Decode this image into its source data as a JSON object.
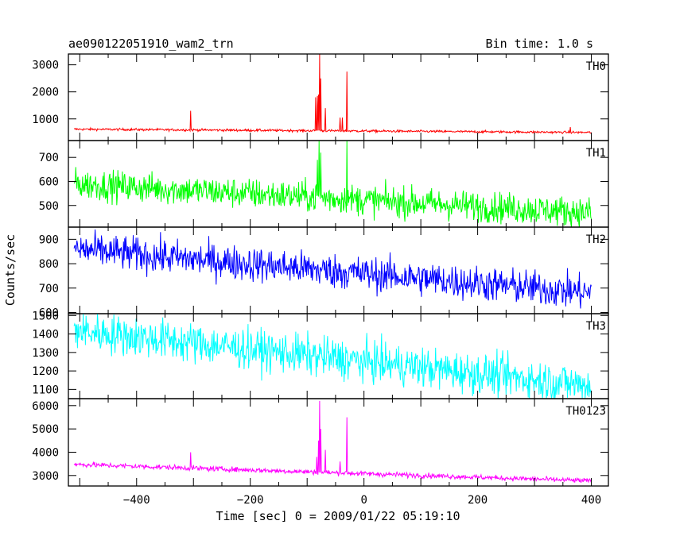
{
  "header": {
    "title": "ae090122051910_wam2_trn",
    "bin_time": "Bin time: 1.0 s"
  },
  "axes": {
    "ylabel": "Counts/sec",
    "xlabel": "Time [sec] 0 = 2009/01/22 05:19:10"
  },
  "chart_data": {
    "type": "line",
    "xlabel": "Time [sec] 0 = 2009/01/22 05:19:10",
    "ylabel": "Counts/sec",
    "x_range": [
      -510,
      400
    ],
    "xlim": [
      -520,
      430
    ],
    "x_ticks": [
      -400,
      -200,
      0,
      200,
      400
    ],
    "panels": [
      {
        "name": "TH0",
        "color": "#ff0000",
        "ylim": [
          200,
          3400
        ],
        "y_ticks": [
          1000,
          2000,
          3000
        ],
        "baseline": [
          620,
          500
        ],
        "noise": 22,
        "spikes": [
          {
            "x": -305,
            "y": 1300
          },
          {
            "x": -85,
            "y": 1800
          },
          {
            "x": -82,
            "y": 1850
          },
          {
            "x": -80,
            "y": 1900
          },
          {
            "x": -78,
            "y": 3400
          },
          {
            "x": -76,
            "y": 2500
          },
          {
            "x": -68,
            "y": 1400
          },
          {
            "x": -42,
            "y": 1050
          },
          {
            "x": -38,
            "y": 1050
          },
          {
            "x": -30,
            "y": 2750
          },
          {
            "x": 363,
            "y": 700
          }
        ]
      },
      {
        "name": "TH1",
        "color": "#00ff00",
        "ylim": [
          410,
          770
        ],
        "y_ticks": [
          500,
          600,
          700
        ],
        "baseline": [
          590,
          470
        ],
        "noise": 32,
        "spikes": [
          {
            "x": -82,
            "y": 690
          },
          {
            "x": -79,
            "y": 770
          },
          {
            "x": -76,
            "y": 720
          },
          {
            "x": -30,
            "y": 770
          }
        ]
      },
      {
        "name": "TH2",
        "color": "#0000ff",
        "ylim": [
          595,
          950
        ],
        "y_ticks": [
          600,
          700,
          800,
          900
        ],
        "baseline": [
          860,
          680
        ],
        "noise": 36,
        "spikes": []
      },
      {
        "name": "TH3",
        "color": "#00ffff",
        "ylim": [
          1050,
          1510
        ],
        "y_ticks": [
          1100,
          1200,
          1300,
          1400,
          1500
        ],
        "baseline": [
          1420,
          1120
        ],
        "noise": 55,
        "spikes": []
      },
      {
        "name": "TH0123",
        "color": "#ff00ff",
        "ylim": [
          2550,
          6300
        ],
        "y_ticks": [
          3000,
          4000,
          5000,
          6000
        ],
        "baseline": [
          3480,
          2770
        ],
        "noise": 55,
        "spikes": [
          {
            "x": -305,
            "y": 4000
          },
          {
            "x": -83,
            "y": 3800
          },
          {
            "x": -80,
            "y": 4500
          },
          {
            "x": -78,
            "y": 6200
          },
          {
            "x": -76,
            "y": 5000
          },
          {
            "x": -68,
            "y": 4100
          },
          {
            "x": -42,
            "y": 3600
          },
          {
            "x": -30,
            "y": 5500
          }
        ]
      }
    ]
  }
}
